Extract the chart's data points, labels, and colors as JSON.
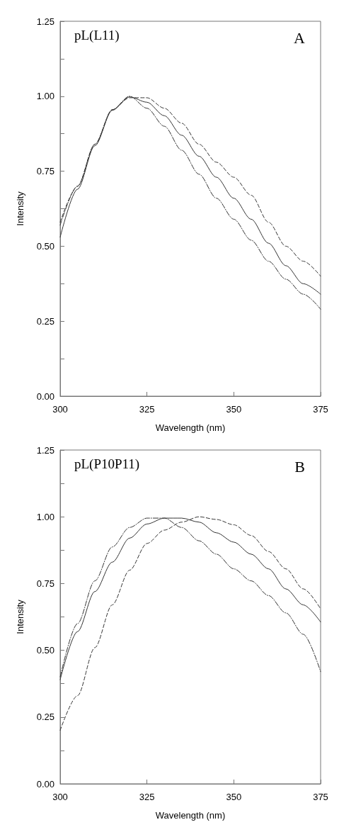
{
  "chart_data": [
    {
      "type": "line",
      "title": "pL(L11)",
      "annotations": [
        "A"
      ],
      "xlabel": "Wavelength (nm)",
      "ylabel": "Intensity",
      "x": [
        300,
        305,
        310,
        315,
        320,
        325,
        330,
        335,
        340,
        345,
        350,
        355,
        360,
        365,
        370,
        375
      ],
      "series": [
        {
          "color": "#333333",
          "line_style": "solid",
          "values": [
            0.53,
            0.69,
            0.835,
            0.953,
            0.998,
            0.98,
            0.935,
            0.87,
            0.8,
            0.73,
            0.66,
            0.59,
            0.51,
            0.435,
            0.375,
            0.34
          ]
        },
        {
          "color": "#333333",
          "line_style": "dashed",
          "values": [
            0.58,
            0.7,
            0.84,
            0.955,
            0.995,
            0.995,
            0.96,
            0.91,
            0.84,
            0.78,
            0.73,
            0.67,
            0.58,
            0.5,
            0.45,
            0.4
          ]
        },
        {
          "color": "#333333",
          "line_style": "dotted",
          "values": [
            0.57,
            0.7,
            0.84,
            0.955,
            1.0,
            0.96,
            0.9,
            0.82,
            0.74,
            0.66,
            0.59,
            0.52,
            0.45,
            0.39,
            0.34,
            0.29
          ]
        }
      ],
      "xlim": [
        300,
        375
      ],
      "xticks": [
        300,
        325,
        350,
        375
      ],
      "ylim": [
        0,
        1.25
      ],
      "yticks": [
        {
          "value": 0,
          "label": "0.00"
        },
        {
          "value": 0.125,
          "label": null
        },
        {
          "value": 0.25,
          "label": "0.25"
        },
        {
          "value": 0.375,
          "label": null
        },
        {
          "value": 0.5,
          "label": "0.50"
        },
        {
          "value": 0.625,
          "label": null
        },
        {
          "value": 0.75,
          "label": "0.75"
        },
        {
          "value": 0.875,
          "label": null
        },
        {
          "value": 1,
          "label": "1.00"
        },
        {
          "value": 1.125,
          "label": null
        },
        {
          "value": 1.25,
          "label": "1.25"
        }
      ],
      "grid": false,
      "marker": "none"
    },
    {
      "type": "line",
      "title": "pL(P10P11)",
      "annotations": [
        "B"
      ],
      "xlabel": "Wavelength (nm)",
      "ylabel": "Intensity",
      "x": [
        300,
        305,
        310,
        315,
        320,
        325,
        330,
        335,
        340,
        345,
        350,
        355,
        360,
        365,
        370,
        375
      ],
      "series": [
        {
          "color": "#333333",
          "line_style": "solid",
          "values": [
            0.39,
            0.57,
            0.72,
            0.83,
            0.92,
            0.973,
            0.995,
            0.995,
            0.98,
            0.94,
            0.905,
            0.86,
            0.805,
            0.73,
            0.67,
            0.606
          ]
        },
        {
          "color": "#333333",
          "line_style": "dashed",
          "values": [
            0.2,
            0.33,
            0.51,
            0.67,
            0.8,
            0.9,
            0.95,
            0.98,
            1.0,
            0.99,
            0.97,
            0.93,
            0.87,
            0.805,
            0.73,
            0.655
          ]
        },
        {
          "color": "#333333",
          "line_style": "dotted",
          "values": [
            0.4,
            0.6,
            0.76,
            0.887,
            0.96,
            0.995,
            0.995,
            0.96,
            0.91,
            0.86,
            0.805,
            0.76,
            0.705,
            0.64,
            0.56,
            0.42
          ]
        }
      ],
      "xlim": [
        300,
        375
      ],
      "xticks": [
        300,
        325,
        350,
        375
      ],
      "ylim": [
        0,
        1.25
      ],
      "yticks": [
        {
          "value": 0,
          "label": "0.00"
        },
        {
          "value": 0.125,
          "label": null
        },
        {
          "value": 0.25,
          "label": "0.25"
        },
        {
          "value": 0.375,
          "label": null
        },
        {
          "value": 0.5,
          "label": "0.50"
        },
        {
          "value": 0.625,
          "label": null
        },
        {
          "value": 0.75,
          "label": "0.75"
        },
        {
          "value": 0.875,
          "label": null
        },
        {
          "value": 1,
          "label": "1.00"
        },
        {
          "value": 1.125,
          "label": null
        },
        {
          "value": 1.25,
          "label": "1.25"
        }
      ],
      "grid": false,
      "marker": "none"
    }
  ]
}
